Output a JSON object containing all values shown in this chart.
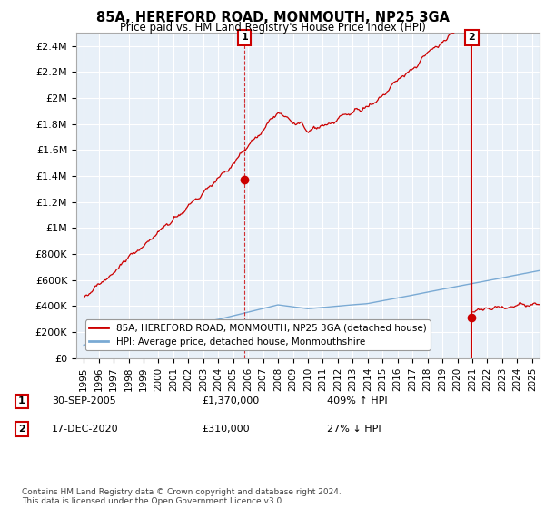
{
  "title": "85A, HEREFORD ROAD, MONMOUTH, NP25 3GA",
  "subtitle": "Price paid vs. HM Land Registry's House Price Index (HPI)",
  "ylim": [
    0,
    2500000
  ],
  "yticks": [
    0,
    200000,
    400000,
    600000,
    800000,
    1000000,
    1200000,
    1400000,
    1600000,
    1800000,
    2000000,
    2200000,
    2400000
  ],
  "ytick_labels": [
    "£0",
    "£200K",
    "£400K",
    "£600K",
    "£800K",
    "£1M",
    "£1.2M",
    "£1.4M",
    "£1.6M",
    "£1.8M",
    "£2M",
    "£2.2M",
    "£2.4M"
  ],
  "hpi_color": "#7aaad4",
  "price_color": "#cc0000",
  "annotation_box_color": "#cc0000",
  "sale1_year": 2005.75,
  "sale1_price": 1370000,
  "sale1_label": "1",
  "sale2_year": 2020.96,
  "sale2_price": 310000,
  "sale2_label": "2",
  "legend_line1": "85A, HEREFORD ROAD, MONMOUTH, NP25 3GA (detached house)",
  "legend_line2": "HPI: Average price, detached house, Monmouthshire",
  "footer": "Contains HM Land Registry data © Crown copyright and database right 2024.\nThis data is licensed under the Open Government Licence v3.0.",
  "background_color": "#ffffff",
  "chart_bg_color": "#e8f0f8",
  "grid_color": "#ffffff"
}
